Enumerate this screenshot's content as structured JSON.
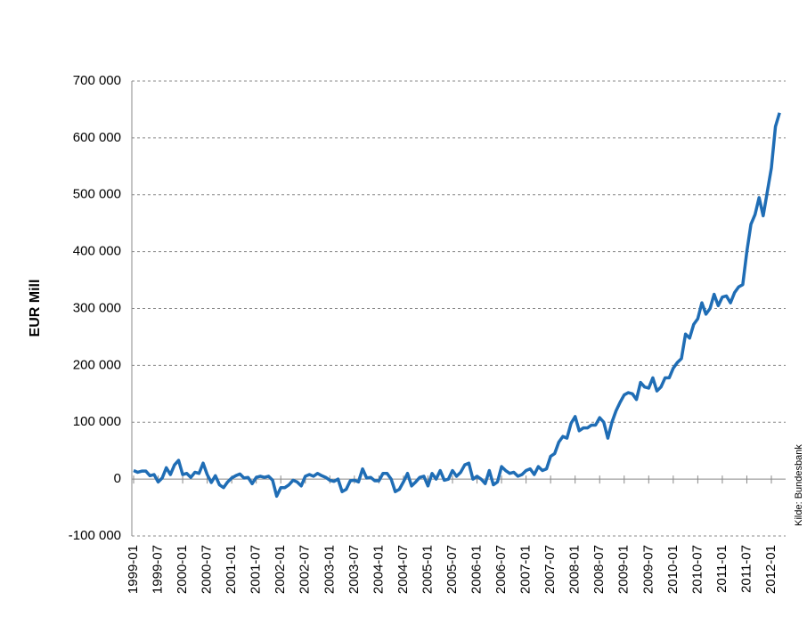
{
  "chart_data": {
    "type": "line",
    "y_label": "EUR Mill",
    "source": "Kilde: Bundesbank",
    "color": "#1f6db5",
    "grid": true,
    "ylim": [
      -100000,
      700000
    ],
    "yticks": [
      {
        "value": -100000,
        "label": "-100 000"
      },
      0,
      {
        "value": 100000,
        "label": "100 000"
      },
      {
        "value": 200000,
        "label": "200 000"
      },
      {
        "value": 300000,
        "label": "300 000"
      },
      {
        "value": 400000,
        "label": "400 000"
      },
      {
        "value": 500000,
        "label": "500 000"
      },
      {
        "value": 600000,
        "label": "600 000"
      },
      {
        "value": 700000,
        "label": "700 000"
      }
    ],
    "categories": [
      "1999-01",
      null,
      null,
      null,
      null,
      null,
      "1999-07",
      null,
      null,
      null,
      null,
      null,
      "2000-01",
      null,
      null,
      null,
      null,
      null,
      "2000-07",
      null,
      null,
      null,
      null,
      null,
      "2001-01",
      null,
      null,
      null,
      null,
      null,
      "2001-07",
      null,
      null,
      null,
      null,
      null,
      "2002-01",
      null,
      null,
      null,
      null,
      null,
      "2002-07",
      null,
      null,
      null,
      null,
      null,
      "2003-01",
      null,
      null,
      null,
      null,
      null,
      "2003-07",
      null,
      null,
      null,
      null,
      null,
      "2004-01",
      null,
      null,
      null,
      null,
      null,
      "2004-07",
      null,
      null,
      null,
      null,
      null,
      "2005-01",
      null,
      null,
      null,
      null,
      null,
      "2005-07",
      null,
      null,
      null,
      null,
      null,
      "2006-01",
      null,
      null,
      null,
      null,
      null,
      "2006-07",
      null,
      null,
      null,
      null,
      null,
      "2007-01",
      null,
      null,
      null,
      null,
      null,
      "2007-07",
      null,
      null,
      null,
      null,
      null,
      "2008-01",
      null,
      null,
      null,
      null,
      null,
      "2008-07",
      null,
      null,
      null,
      null,
      null,
      "2009-01",
      null,
      null,
      null,
      null,
      null,
      "2009-07",
      null,
      null,
      null,
      null,
      null,
      "2010-01",
      null,
      null,
      null,
      null,
      null,
      "2010-07",
      null,
      null,
      null,
      null,
      null,
      "2011-01",
      null,
      null,
      null,
      null,
      null,
      "2011-07",
      null,
      null,
      null,
      null,
      null,
      "2012-01",
      null,
      null
    ],
    "values": [
      15000,
      12000,
      14000,
      14000,
      6000,
      8000,
      -5000,
      2000,
      20000,
      8000,
      25000,
      33000,
      8000,
      10000,
      3000,
      12000,
      10000,
      28000,
      8000,
      -6000,
      6000,
      -10000,
      -15000,
      -5000,
      2000,
      6000,
      9000,
      2000,
      3000,
      -8000,
      3000,
      5000,
      3000,
      5000,
      -2000,
      -30000,
      -15000,
      -15000,
      -10000,
      -2000,
      -5000,
      -12000,
      5000,
      8000,
      5000,
      10000,
      6000,
      3000,
      -2000,
      -4000,
      0,
      -22000,
      -18000,
      -3000,
      -2000,
      -5000,
      18000,
      2000,
      3000,
      -3000,
      -3000,
      10000,
      10000,
      0,
      -22000,
      -18000,
      -5000,
      10000,
      -12000,
      -5000,
      3000,
      5000,
      -12000,
      10000,
      0,
      15000,
      -2000,
      0,
      15000,
      5000,
      12000,
      25000,
      28000,
      0,
      5000,
      0,
      -8000,
      15000,
      -10000,
      -5000,
      22000,
      15000,
      10000,
      12000,
      5000,
      8000,
      15000,
      18000,
      8000,
      22000,
      15000,
      18000,
      40000,
      45000,
      65000,
      75000,
      72000,
      98000,
      110000,
      85000,
      90000,
      90000,
      95000,
      95000,
      108000,
      100000,
      72000,
      100000,
      120000,
      135000,
      148000,
      152000,
      150000,
      140000,
      170000,
      162000,
      160000,
      178000,
      155000,
      162000,
      178000,
      178000,
      195000,
      205000,
      212000,
      255000,
      248000,
      272000,
      282000,
      310000,
      290000,
      300000,
      325000,
      305000,
      320000,
      322000,
      310000,
      328000,
      338000,
      342000,
      400000,
      448000,
      465000,
      495000,
      463000,
      505000,
      547000,
      620000,
      644000
    ]
  }
}
